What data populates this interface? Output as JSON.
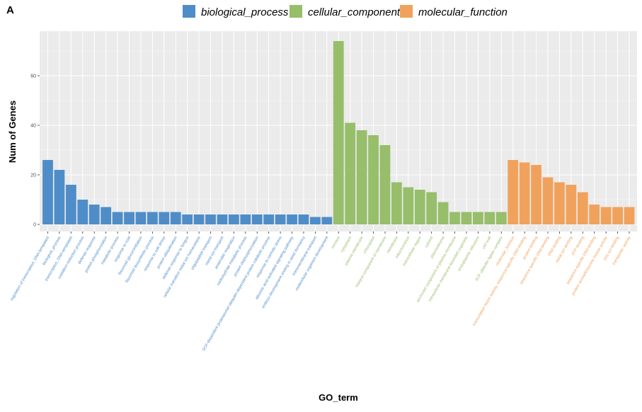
{
  "panel_label": "A",
  "chart_data": {
    "type": "bar",
    "xlabel": "GO_term",
    "ylabel": "Num of Genes",
    "ylim": [
      0,
      76
    ],
    "yticks": [
      0,
      20,
      40,
      60
    ],
    "grid": true,
    "legend_position": "top",
    "series": [
      {
        "name": "biological_process",
        "color": "#4f8dc9",
        "categories": [
          "regulation of transcription, DNA-templated",
          "biological_process",
          "transcription, DNA-templated",
          "oxidation-reduction process",
          "defense response",
          "protein phosphorylation",
          "metabolic process",
          "response to cold",
          "flavonoid glucuronidation",
          "flavonoid biosynthetic process",
          "response to salt stress",
          "protein ubiquitination",
          "defense response to fungus",
          "cellular transition metal ion homeostasis",
          "oligopeptide transport",
          "metal ion transport",
          "anaerobic respiration",
          "carbohydrate metabolic process",
          "protein dephosphorylation",
          "SCF-dependent proteasomal ubiquitin-dependent protein catabolic process",
          "response to osmotic stress",
          "abscisic acid-activated signaling pathway",
          "embryo development ending in seed dormancy",
          "transmembrane transport",
          "multicellular organism development"
        ],
        "values": [
          26,
          22,
          16,
          10,
          8,
          7,
          5,
          5,
          5,
          5,
          5,
          5,
          4,
          4,
          4,
          4,
          4,
          4,
          4,
          4,
          4,
          4,
          4,
          3,
          3
        ]
      },
      {
        "name": "cellular_component",
        "color": "#97be6b",
        "categories": [
          "nucleus",
          "cytoplasm",
          "plasma membrane",
          "chloroplast",
          "integral component of membrane",
          "membrane",
          "mitochondrion",
          "extracellular region",
          "cytosol",
          "plasmodesma",
          "anchored component of plasma membrane",
          "intracellular membrane-bounded organelle",
          "endoplasmic reticulum",
          "cell wall",
          "SCF ubiquitin ligase complex"
        ],
        "values": [
          74,
          41,
          38,
          36,
          32,
          17,
          15,
          14,
          13,
          9,
          5,
          5,
          5,
          5,
          5
        ]
      },
      {
        "name": "molecular_function",
        "color": "#f0a25c",
        "categories": [
          "molecular_function",
          "transcription factor activity, sequence-specific DNA binding",
          "protein binding",
          "sequence-specific DNA binding",
          "DNA binding",
          "metal ion binding",
          "ATP binding",
          "sequence-specific DNA binding",
          "protein serine/threonine kinase activity",
          "zinc ion binding",
          "transporter activity"
        ],
        "values": [
          26,
          25,
          24,
          19,
          17,
          16,
          13,
          8,
          7,
          7,
          7
        ]
      }
    ]
  }
}
